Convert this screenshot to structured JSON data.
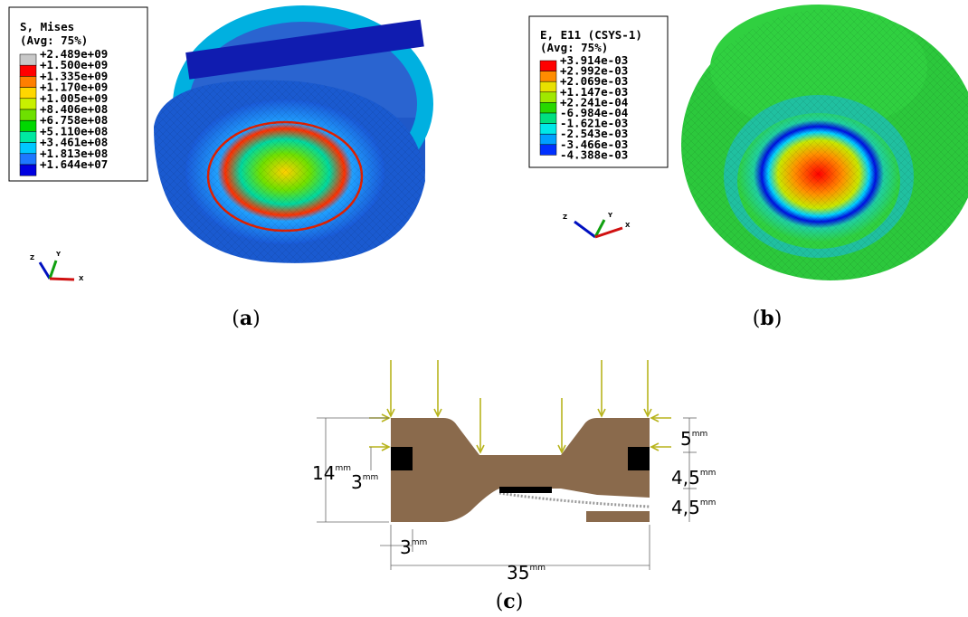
{
  "panel_a": {
    "legend": {
      "title": "S, Mises",
      "subtitle": "(Avg: 75%)",
      "labels": [
        "+2.489e+09",
        "+1.500e+09",
        "+1.335e+09",
        "+1.170e+09",
        "+1.005e+09",
        "+8.406e+08",
        "+6.758e+08",
        "+5.110e+08",
        "+3.461e+08",
        "+1.813e+08",
        "+1.644e+07"
      ],
      "colors": [
        "#c8c8c8",
        "#ff0000",
        "#ff7f00",
        "#ffd700",
        "#c8f000",
        "#6ee000",
        "#00d800",
        "#00e8a0",
        "#00c8ff",
        "#1e78ff",
        "#0000e0"
      ]
    },
    "triad": [
      "Z",
      "Y",
      "X"
    ],
    "caption": {
      "open": "(",
      "letter": "a",
      "close": ")"
    }
  },
  "panel_b": {
    "legend": {
      "title": "E, E11 (CSYS-1)",
      "subtitle": "(Avg: 75%)",
      "labels": [
        "+3.914e-03",
        "+2.992e-03",
        "+2.069e-03",
        "+1.147e-03",
        "+2.241e-04",
        "-6.984e-04",
        "-1.621e-03",
        "-2.543e-03",
        "-3.466e-03",
        "-4.388e-03"
      ],
      "colors": [
        "#ff0000",
        "#ff8c00",
        "#e8e000",
        "#a0e800",
        "#28d800",
        "#00e080",
        "#00e8e8",
        "#00a0ff",
        "#0030ff"
      ]
    },
    "triad": [
      "Z",
      "Y",
      "X"
    ],
    "caption": {
      "open": "(",
      "letter": "b",
      "close": ")"
    }
  },
  "panel_c": {
    "dimensions": [
      {
        "value": "14",
        "unit": "mm"
      },
      {
        "value": "3",
        "unit": "mm"
      },
      {
        "value": "5",
        "unit": "mm"
      },
      {
        "value": "4,5",
        "unit": "mm"
      },
      {
        "value": "4,5",
        "unit": "mm"
      },
      {
        "value": "3",
        "unit": "mm"
      },
      {
        "value": "35",
        "unit": "mm"
      }
    ],
    "caption": {
      "open": "(",
      "letter": "c",
      "close": ")"
    }
  }
}
